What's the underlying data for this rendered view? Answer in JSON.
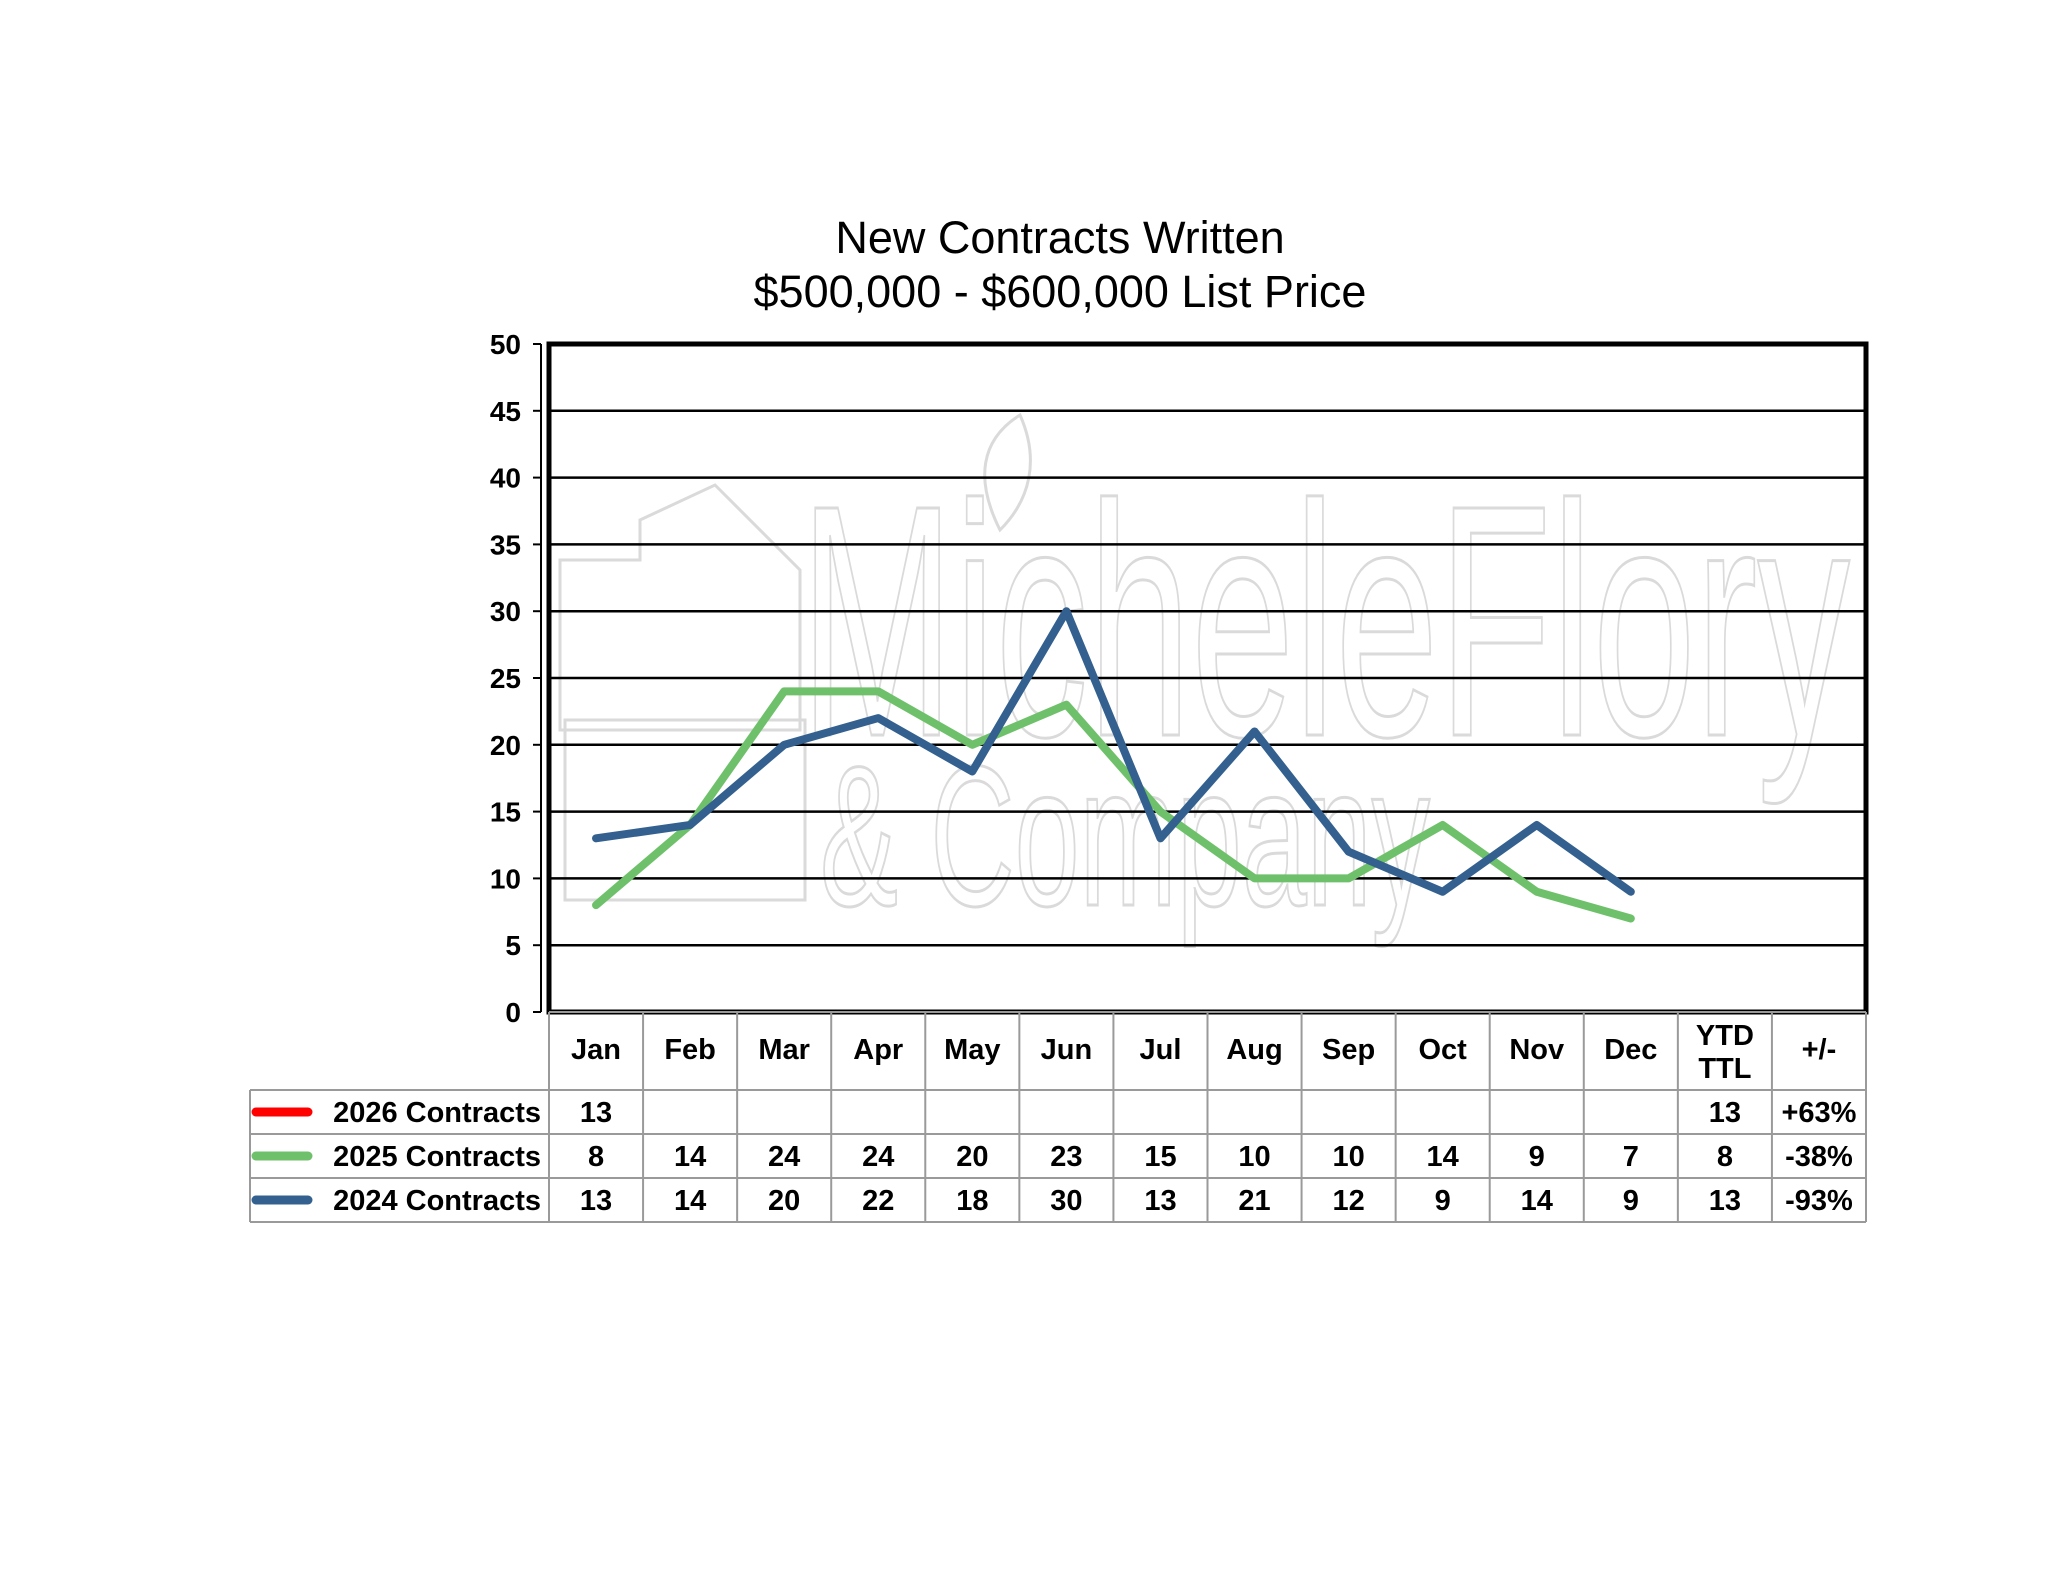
{
  "chart_data": {
    "type": "line",
    "title": "New Contracts Written",
    "subtitle": "$500,000 - $600,000 List Price",
    "categories": [
      "Jan",
      "Feb",
      "Mar",
      "Apr",
      "May",
      "Jun",
      "Jul",
      "Aug",
      "Sep",
      "Oct",
      "Nov",
      "Dec"
    ],
    "yticks": [
      "0",
      "5",
      "10",
      "15",
      "20",
      "25",
      "30",
      "35",
      "40",
      "45",
      "50"
    ],
    "ylim": [
      0,
      50
    ],
    "grid": true,
    "table_headers": {
      "ytd": "YTD\nTTL",
      "change": "+/-"
    },
    "series": [
      {
        "name": "2026 Contracts",
        "color": "#ff0000",
        "values": [
          13,
          null,
          null,
          null,
          null,
          null,
          null,
          null,
          null,
          null,
          null,
          null
        ],
        "ytd": "13",
        "change": "+63%"
      },
      {
        "name": "2025 Contracts",
        "color": "#6ec16a",
        "values": [
          8,
          14,
          24,
          24,
          20,
          23,
          15,
          10,
          10,
          14,
          9,
          7
        ],
        "ytd": "8",
        "change": "-38%"
      },
      {
        "name": "2024 Contracts",
        "color": "#33608f",
        "values": [
          13,
          14,
          20,
          22,
          18,
          30,
          13,
          21,
          12,
          9,
          14,
          9
        ],
        "ytd": "13",
        "change": "-93%"
      }
    ]
  },
  "watermark": {
    "line1": "MicheleFlory",
    "line2": "& Company"
  }
}
